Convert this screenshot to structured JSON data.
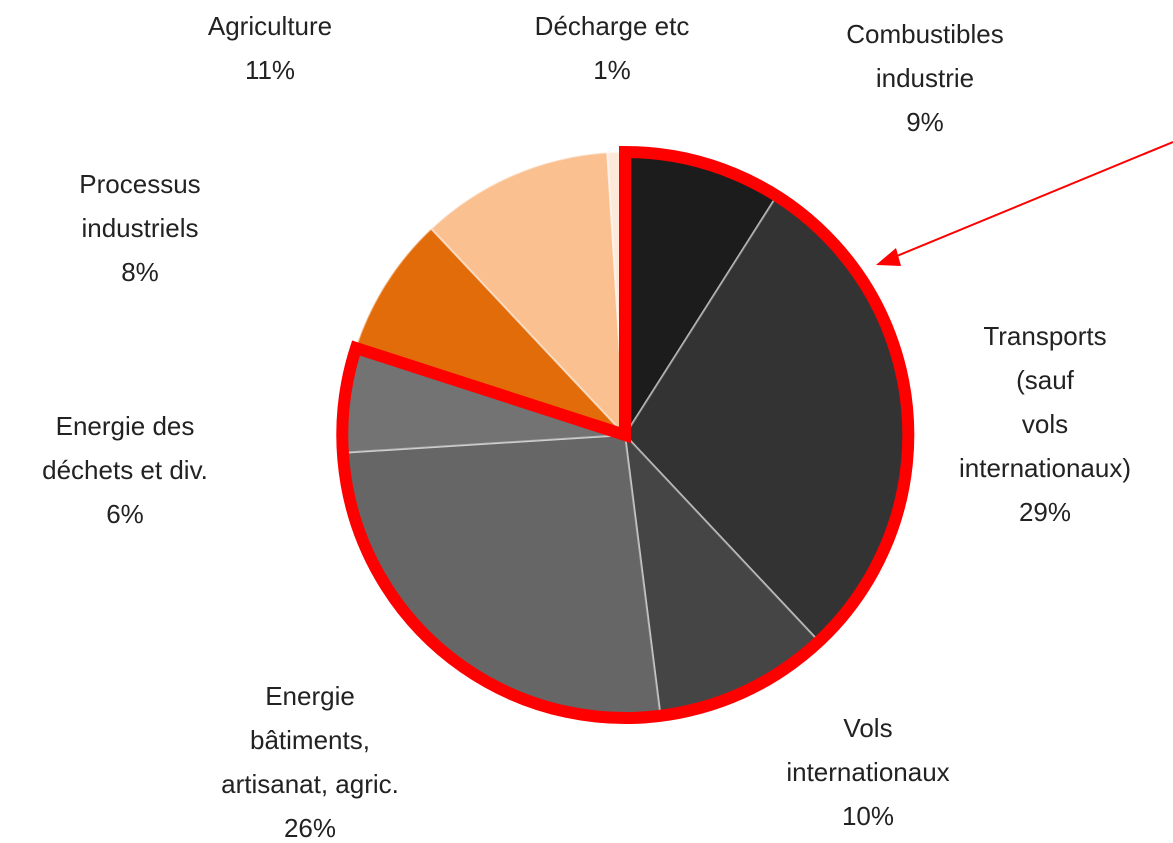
{
  "chart_data": {
    "type": "pie",
    "categories": [
      "Combustibles\nindustrie",
      "Transports (sauf\nvols\ninternationaux)",
      "Vols\ninternationaux",
      "Energie\nbâtiments,\nartisanat, agric.",
      "Energie des\ndéchets et div.",
      "Processus\nindustriels",
      "Agriculture",
      "Décharge etc"
    ],
    "values": [
      9,
      29,
      10,
      26,
      6,
      8,
      11,
      1
    ],
    "value_labels": [
      "9%",
      "29%",
      "10%",
      "26%",
      "6%",
      "8%",
      "11%",
      "1%"
    ],
    "colors": [
      "#1c1c1c",
      "#333333",
      "#454545",
      "#666666",
      "#737373",
      "#e36c0a",
      "#fac090",
      "#fde9d9"
    ]
  }
}
